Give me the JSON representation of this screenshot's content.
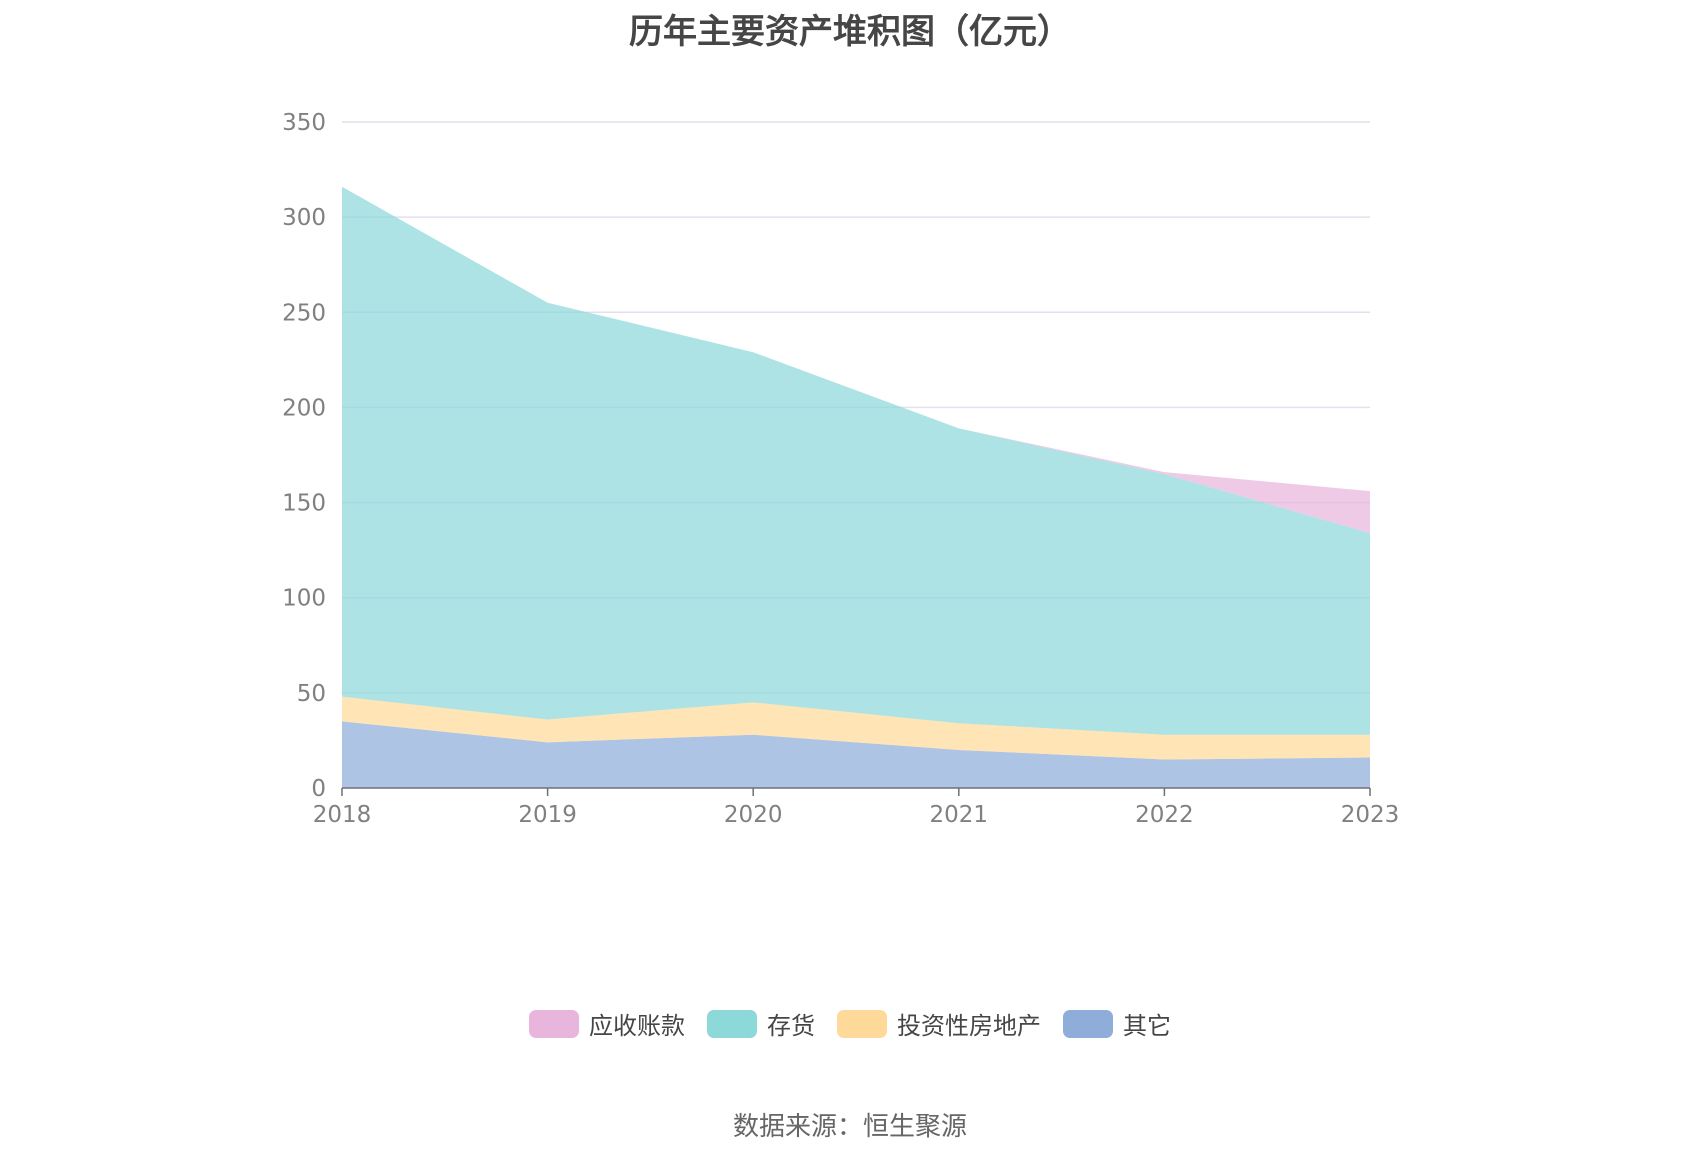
{
  "chart_data": {
    "type": "area",
    "stacked": true,
    "title": "历年主要资产堆积图（亿元）",
    "x": [
      "2018",
      "2019",
      "2020",
      "2021",
      "2022",
      "2023"
    ],
    "y_ticks": [
      "0",
      "50",
      "100",
      "150",
      "200",
      "250",
      "300",
      "350"
    ],
    "ylim": [
      0,
      350
    ],
    "grid": true,
    "legend_position": "bottom",
    "series": [
      {
        "name": "其它",
        "color": "#8fadd9",
        "values": [
          35,
          24,
          28,
          20,
          15,
          16
        ]
      },
      {
        "name": "投资性房地产",
        "color": "#ffd99a",
        "values": [
          13,
          12,
          17,
          14,
          13,
          12
        ]
      },
      {
        "name": "存货",
        "color": "#8dd8d9",
        "values": [
          268,
          219,
          184,
          155,
          137,
          106
        ]
      },
      {
        "name": "应收账款",
        "color": "#e8b6dc",
        "values": [
          0,
          0,
          0,
          0,
          1,
          22
        ]
      }
    ],
    "legend_order": [
      "应收账款",
      "存货",
      "投资性房地产",
      "其它"
    ]
  },
  "source_text": "数据来源：恒生聚源"
}
